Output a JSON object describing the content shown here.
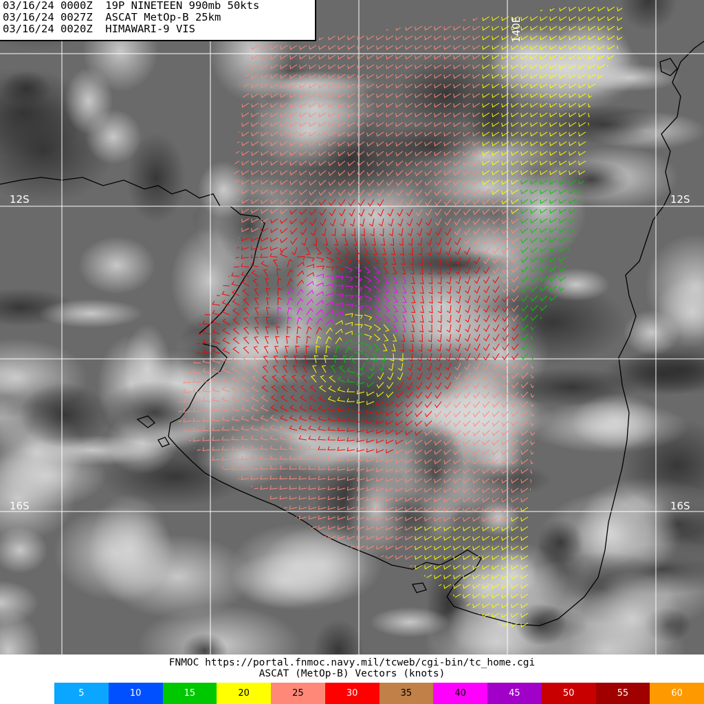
{
  "header": {
    "line1": "03/16/24 0000Z  19P NINETEEN 990mb 50kts",
    "line2": "03/16/24 0027Z  ASCAT MetOp-B 25km",
    "line3": "03/16/24 0020Z  HIMAWARI-9 VIS"
  },
  "grid_labels": {
    "lat_12s": "12S",
    "lat_16s": "16S",
    "lon_140e": "140E"
  },
  "footer": {
    "source": "FNMOC https://portal.fnmoc.navy.mil/tcweb/cgi-bin/tc_home.cgi",
    "caption": "ASCAT (MetOp-B) Vectors (knots)"
  },
  "legend": [
    {
      "label": "5",
      "color": "#0aa6ff"
    },
    {
      "label": "10",
      "color": "#0050ff"
    },
    {
      "label": "15",
      "color": "#00c800"
    },
    {
      "label": "20",
      "color": "#ffff00"
    },
    {
      "label": "25",
      "color": "#ff8878"
    },
    {
      "label": "30",
      "color": "#ff0000"
    },
    {
      "label": "35",
      "color": "#c08048"
    },
    {
      "label": "40",
      "color": "#ff00ff"
    },
    {
      "label": "45",
      "color": "#a000c8"
    },
    {
      "label": "50",
      "color": "#c80000"
    },
    {
      "label": "55",
      "color": "#a00000"
    },
    {
      "label": "60",
      "color": "#ff9900"
    }
  ]
}
